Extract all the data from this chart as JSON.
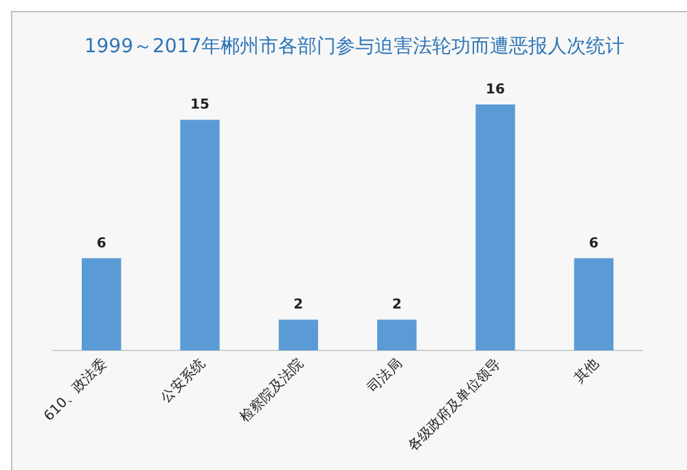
{
  "chart_data": {
    "type": "bar",
    "title": "1999～2017年郴州市各部门参与迫害法轮功而遭恶报人次统计",
    "categories": [
      "610、政法委",
      "公安系统",
      "检察院及法院",
      "司法局",
      "各级政府及单位领导",
      "其他"
    ],
    "values": [
      6,
      15,
      2,
      2,
      16,
      6
    ],
    "color": "#5b9bd5",
    "data_labels": true
  }
}
